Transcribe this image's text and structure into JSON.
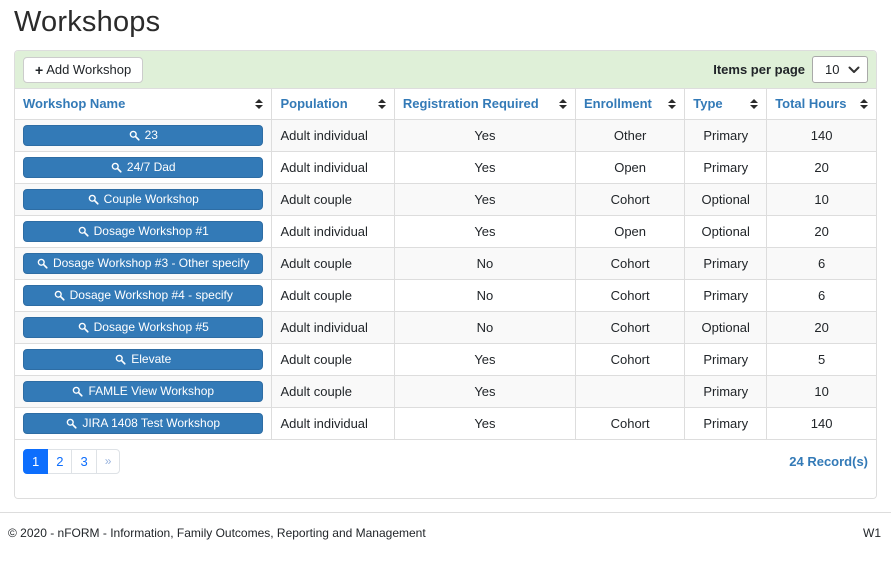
{
  "page": {
    "title": "Workshops",
    "footer": {
      "copyright": "© 2020 - nFORM - Information, Family Outcomes, Reporting and Management",
      "version": "W1"
    }
  },
  "toolbar": {
    "add_button_label": "Add Workshop",
    "items_per_page_label": "Items per page",
    "items_per_page_value": "10"
  },
  "icons": {
    "add_button": "plus-icon",
    "workshop_button": "search-icon",
    "items_per_page_select": "chevron-down-icon",
    "column_header": "sort-icon"
  },
  "colors": {
    "panel_heading_bg": "#dff0d8",
    "workshop_button_blue": "#337ab7",
    "header_text_blue": "#337ab7",
    "active_page_blue": "#0d6efd",
    "row_stripe_gray": "#f9f9f9",
    "border_gray": "#dddddd"
  },
  "table": {
    "columns": [
      {
        "label": "Workshop Name"
      },
      {
        "label": "Population"
      },
      {
        "label": "Registration Required"
      },
      {
        "label": "Enrollment"
      },
      {
        "label": "Type"
      },
      {
        "label": "Total Hours"
      }
    ],
    "rows": [
      {
        "name": "23",
        "population": "Adult individual",
        "registration_required": "Yes",
        "enrollment": "Other",
        "type": "Primary",
        "total_hours": "140"
      },
      {
        "name": "24/7 Dad",
        "population": "Adult individual",
        "registration_required": "Yes",
        "enrollment": "Open",
        "type": "Primary",
        "total_hours": "20"
      },
      {
        "name": "Couple Workshop",
        "population": "Adult couple",
        "registration_required": "Yes",
        "enrollment": "Cohort",
        "type": "Optional",
        "total_hours": "10"
      },
      {
        "name": "Dosage Workshop #1",
        "population": "Adult individual",
        "registration_required": "Yes",
        "enrollment": "Open",
        "type": "Optional",
        "total_hours": "20"
      },
      {
        "name": "Dosage Workshop #3 - Other specify",
        "population": "Adult couple",
        "registration_required": "No",
        "enrollment": "Cohort",
        "type": "Primary",
        "total_hours": "6"
      },
      {
        "name": "Dosage Workshop #4 - specify",
        "population": "Adult couple",
        "registration_required": "No",
        "enrollment": "Cohort",
        "type": "Primary",
        "total_hours": "6"
      },
      {
        "name": "Dosage Workshop #5",
        "population": "Adult individual",
        "registration_required": "No",
        "enrollment": "Cohort",
        "type": "Optional",
        "total_hours": "20"
      },
      {
        "name": "Elevate",
        "population": "Adult couple",
        "registration_required": "Yes",
        "enrollment": "Cohort",
        "type": "Primary",
        "total_hours": "5"
      },
      {
        "name": "FAMLE View Workshop",
        "population": "Adult couple",
        "registration_required": "Yes",
        "enrollment": "",
        "type": "Primary",
        "total_hours": "10"
      },
      {
        "name": "JIRA 1408 Test Workshop",
        "population": "Adult individual",
        "registration_required": "Yes",
        "enrollment": "Cohort",
        "type": "Primary",
        "total_hours": "140"
      }
    ]
  },
  "pagination": {
    "pages": [
      "1",
      "2",
      "3"
    ],
    "active_page": "1",
    "next_label": "»",
    "records_label": "24 Record(s)"
  }
}
